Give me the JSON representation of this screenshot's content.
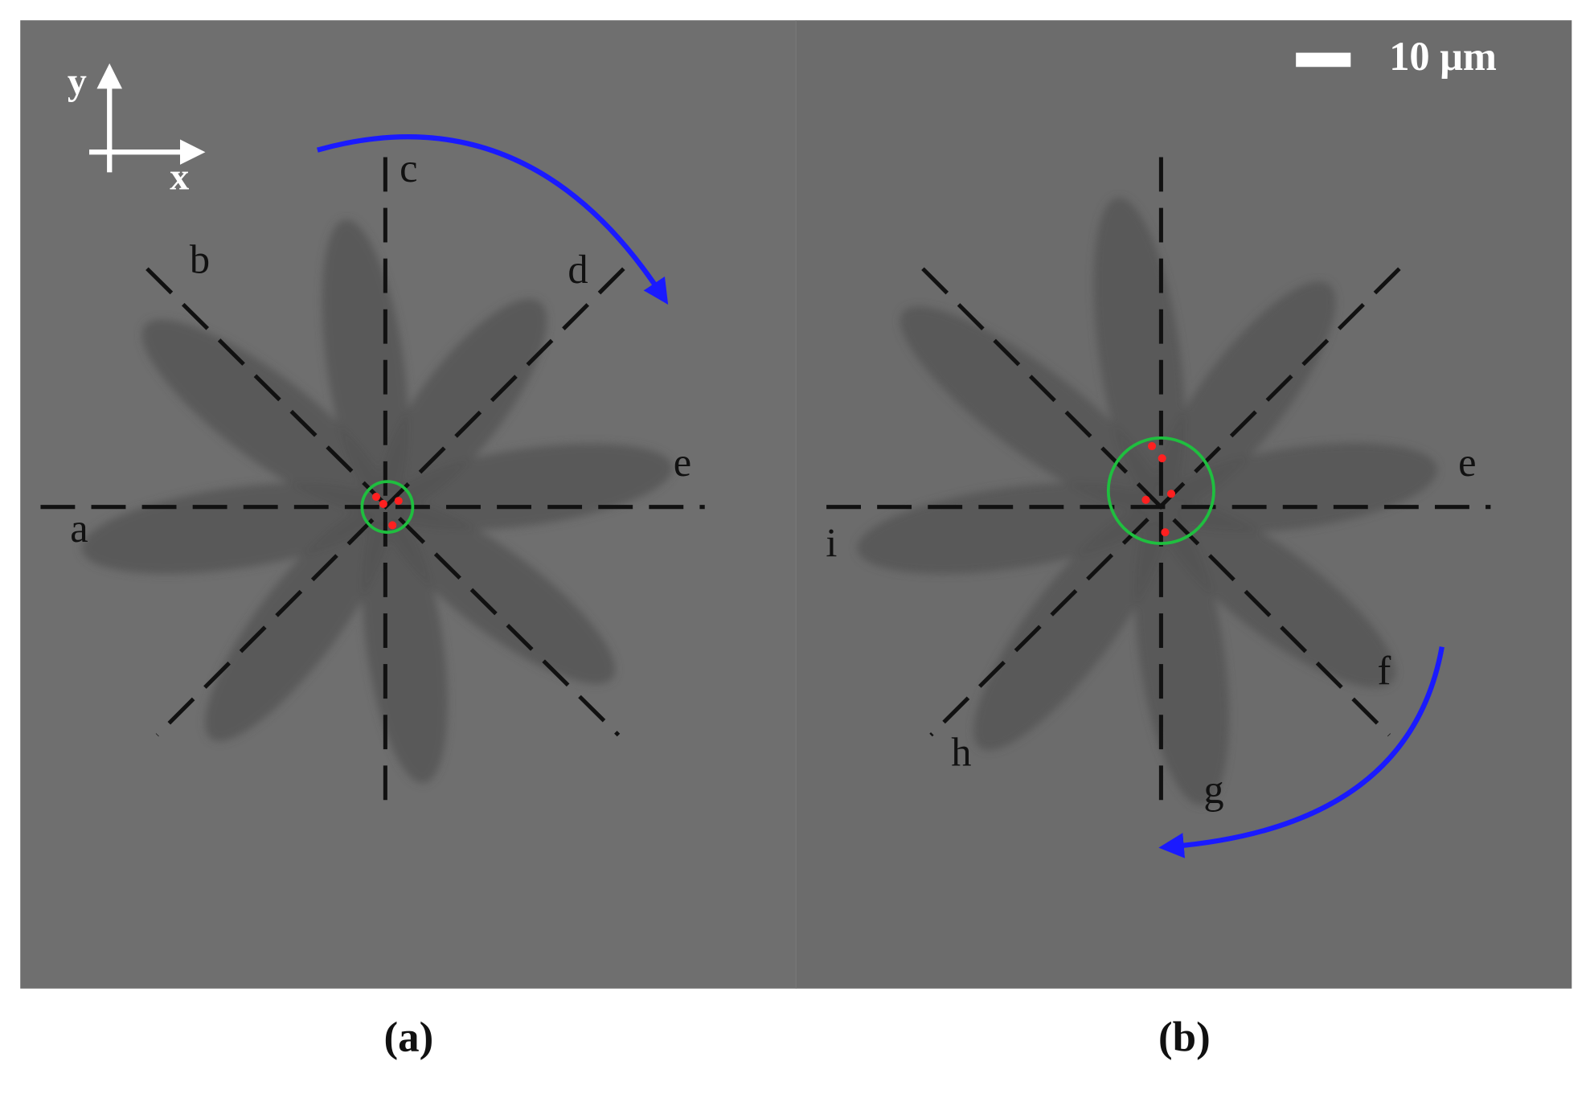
{
  "figure": {
    "axes": {
      "y": "y",
      "x": "x"
    },
    "scale_bar": "10 μm",
    "panels": [
      {
        "caption": "(a)",
        "labels": [
          "a",
          "b",
          "c",
          "d",
          "e"
        ]
      },
      {
        "caption": "(b)",
        "labels": [
          "i",
          "h",
          "g",
          "f",
          "e"
        ]
      }
    ]
  }
}
